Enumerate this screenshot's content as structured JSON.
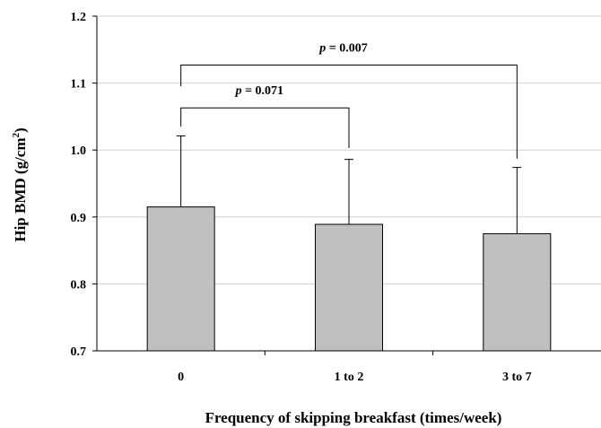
{
  "chart_data": {
    "type": "bar",
    "categories": [
      "0",
      "1 to 2",
      "3 to 7"
    ],
    "values": [
      0.915,
      0.889,
      0.875
    ],
    "errors_upper": [
      1.021,
      0.986,
      0.974
    ],
    "xlabel": "Frequency of skipping breakfast (times/week)",
    "ylabel": {
      "main": "Hip BMD (g/cm",
      "sup": "2",
      "end": ")"
    },
    "ylim": [
      0.7,
      1.2
    ],
    "yticks": [
      "0.7",
      "0.8",
      "0.9",
      "1.0",
      "1.1",
      "1.2"
    ],
    "grid": true,
    "bar_color": "#c0c0c0",
    "comparisons": [
      {
        "from": 0,
        "to": 1,
        "p_symbol": "p",
        "p_text": " = 0.071",
        "y": 1.063,
        "left_end": 1.035,
        "right_end": 1.003
      },
      {
        "from": 0,
        "to": 2,
        "p_symbol": "p",
        "p_text": " = 0.007",
        "y": 1.127,
        "left_end": 1.095,
        "right_end": 0.987
      }
    ]
  }
}
